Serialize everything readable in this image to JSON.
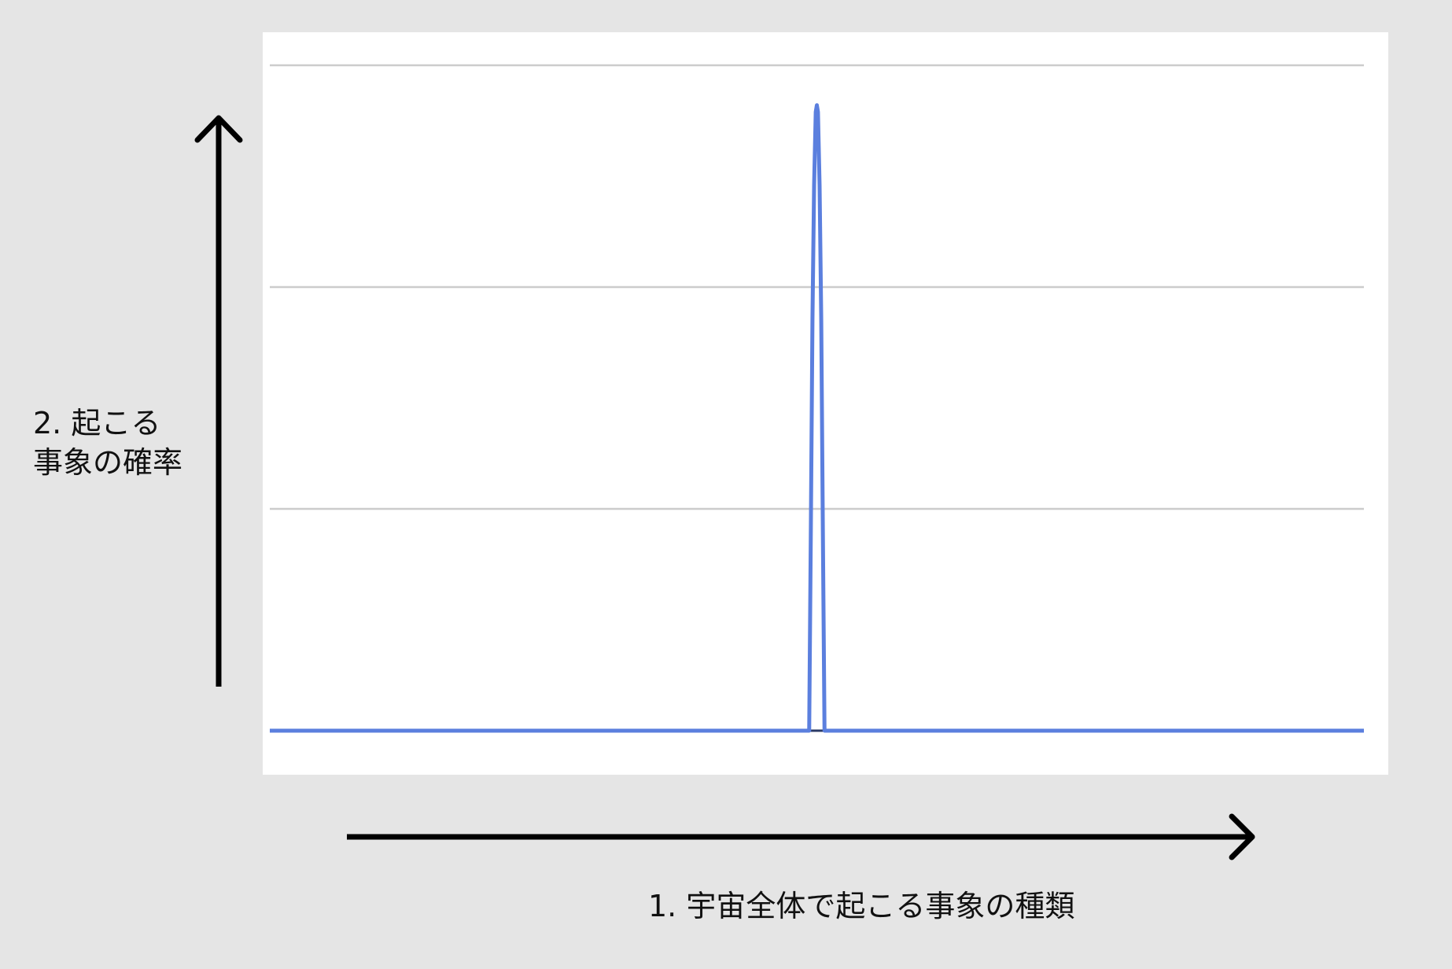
{
  "colors": {
    "background": "#e5e5e5",
    "plot_background": "#ffffff",
    "gridline": "#cccccc",
    "series": "#5b7fde",
    "axis_arrow": "#000000",
    "baseline": "#2b3a66"
  },
  "chart_data": {
    "type": "line",
    "title": "",
    "xlabel": "1.  宇宙全体で起こる事象の種類",
    "ylabel_lines": [
      "2. 起こる",
      "事象の確率"
    ],
    "grid": true,
    "gridline_count": 4,
    "legend": "none",
    "x_range": [
      0,
      100
    ],
    "y_range": [
      0,
      1
    ],
    "series": [
      {
        "peak_center": 50,
        "peak_half_width": 0.7,
        "values_description_free": true,
        "x": [
          0,
          49.3,
          49.45,
          49.6,
          49.75,
          49.9,
          50.0,
          50.1,
          50.25,
          50.4,
          50.55,
          50.7,
          100
        ],
        "y": [
          0,
          0,
          0.3,
          0.62,
          0.82,
          0.93,
          0.94,
          0.93,
          0.82,
          0.62,
          0.3,
          0,
          0
        ]
      }
    ]
  }
}
